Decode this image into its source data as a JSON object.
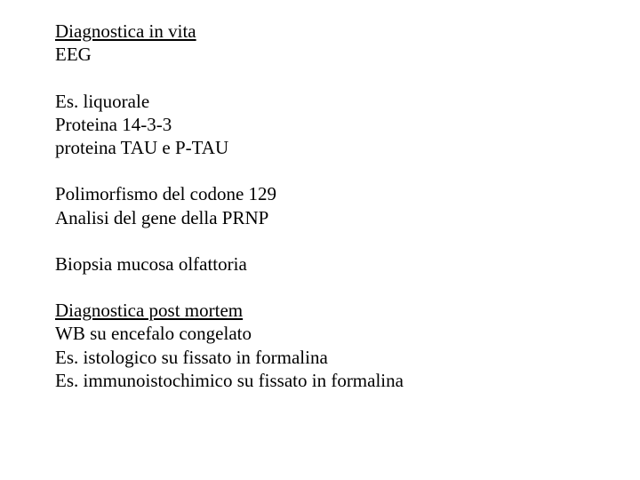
{
  "typography": {
    "font_family": "Times New Roman",
    "font_size_pt": 16,
    "color": "#000000",
    "background": "#ffffff"
  },
  "sections": {
    "invita": {
      "heading": "Diagnostica in vita",
      "lines_a": [
        "EEG"
      ],
      "lines_b": [
        "Es. liquorale",
        "Proteina 14-3-3",
        "proteina TAU e P-TAU"
      ],
      "lines_c": [
        "Polimorfismo del codone 129",
        "Analisi del gene della PRNP"
      ],
      "lines_d": [
        "Biopsia mucosa olfattoria"
      ]
    },
    "postmortem": {
      "heading": "Diagnostica post mortem",
      "lines": [
        "WB su encefalo congelato",
        "Es. istologico su fissato in formalina",
        "Es. immunoistochimico su fissato in formalina"
      ]
    }
  }
}
